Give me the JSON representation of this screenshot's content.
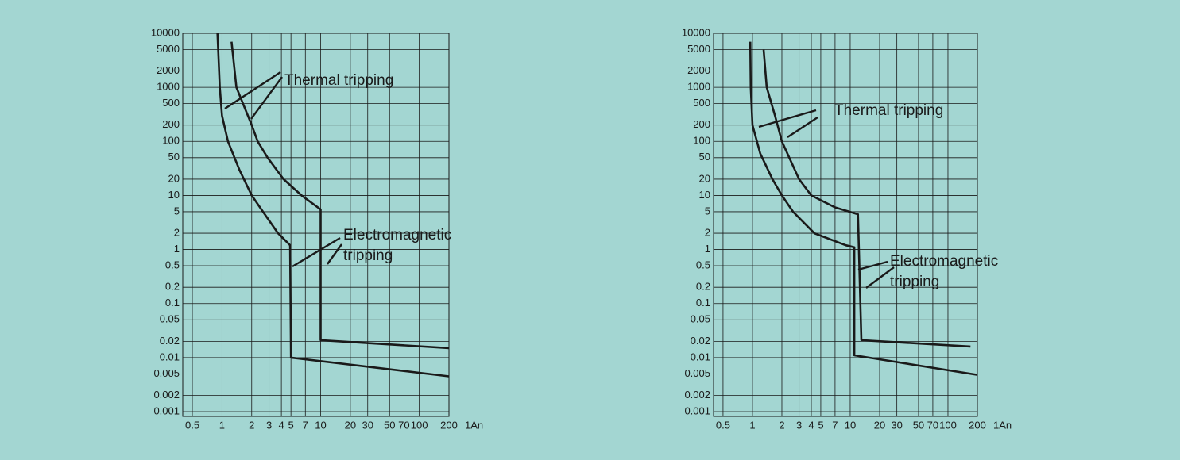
{
  "chart_data": [
    {
      "type": "line",
      "x_label": "1An",
      "log_x": true,
      "log_y": true,
      "grid": true,
      "xlim": [
        0.4,
        200
      ],
      "ylim": [
        0.001,
        10000
      ],
      "xticks": [
        0.5,
        1,
        2,
        3,
        4,
        5,
        7,
        10,
        20,
        30,
        50,
        70,
        100,
        200
      ],
      "yticks": [
        10000,
        5000,
        2000,
        1000,
        500,
        200,
        100,
        50,
        20,
        10,
        5,
        2,
        1,
        0.5,
        0.2,
        0.1,
        0.05,
        0.02,
        0.01,
        0.005,
        0.002,
        0.001
      ],
      "series": [
        {
          "color": "#1a1a1a",
          "x": [
            0.9,
            0.95,
            1.0,
            1.15,
            1.5,
            2.0,
            2.6,
            3.7,
            4.9,
            5.0,
            200
          ],
          "values": [
            10000,
            1000,
            300,
            100,
            30,
            10,
            5,
            2,
            1.2,
            0.01,
            0.0045
          ]
        },
        {
          "color": "#1a1a1a",
          "x": [
            1.25,
            1.4,
            2.0,
            2.3,
            2.9,
            4.2,
            6.4,
            10,
            10,
            200
          ],
          "values": [
            7000,
            1000,
            200,
            100,
            50,
            20,
            10,
            5.5,
            0.021,
            0.015
          ]
        }
      ],
      "annotations": [
        {
          "lines": [
            "Thermal tripping"
          ]
        },
        {
          "lines": [
            "Electromagnetic",
            "tripping"
          ]
        }
      ]
    },
    {
      "type": "line",
      "x_label": "1An",
      "log_x": true,
      "log_y": true,
      "grid": true,
      "xlim": [
        0.4,
        200
      ],
      "ylim": [
        0.001,
        10000
      ],
      "xticks": [
        0.5,
        1,
        2,
        3,
        4,
        5,
        7,
        10,
        20,
        30,
        50,
        70,
        100,
        200
      ],
      "yticks": [
        10000,
        5000,
        2000,
        1000,
        500,
        200,
        100,
        50,
        20,
        10,
        5,
        2,
        1,
        0.5,
        0.2,
        0.1,
        0.05,
        0.02,
        0.01,
        0.005,
        0.002,
        0.001
      ],
      "series": [
        {
          "color": "#1a1a1a",
          "x": [
            0.95,
            0.96,
            1.0,
            1.2,
            1.6,
            2.0,
            2.6,
            4.3,
            9,
            11,
            11,
            200
          ],
          "values": [
            7000,
            1000,
            200,
            60,
            20,
            10,
            5,
            2,
            1.2,
            1.1,
            0.011,
            0.0048
          ]
        },
        {
          "color": "#1a1a1a",
          "x": [
            1.3,
            1.4,
            1.7,
            2.0,
            3.0,
            4.0,
            7.0,
            12,
            13,
            170
          ],
          "values": [
            5000,
            1000,
            300,
            100,
            20,
            10,
            6,
            4.5,
            0.021,
            0.016
          ]
        }
      ],
      "annotations": [
        {
          "lines": [
            "Thermal tripping"
          ]
        },
        {
          "lines": [
            "Electromagnetic",
            "tripping"
          ]
        }
      ]
    }
  ]
}
